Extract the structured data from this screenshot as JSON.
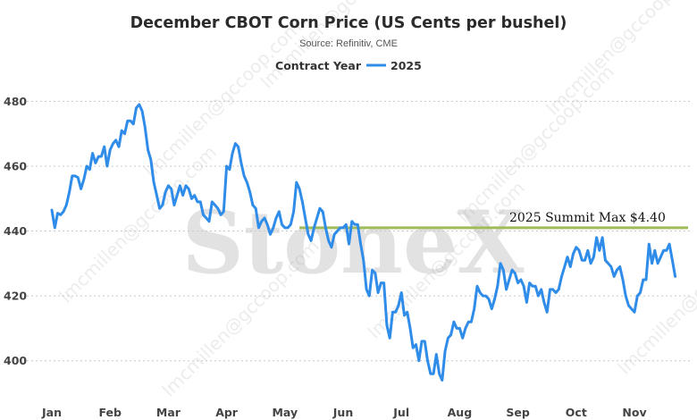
{
  "chart_data": {
    "type": "line",
    "title": "December CBOT Corn Price (US Cents per bushel)",
    "subtitle": "Source: Refinitiv, CME",
    "legend": {
      "title": "Contract Year",
      "placement": "top-center"
    },
    "xlabel": "",
    "ylabel": "",
    "x_ticks": [
      "Jan",
      "Feb",
      "Mar",
      "Apr",
      "May",
      "Jun",
      "Jul",
      "Aug",
      "Sep",
      "Oct",
      "Nov"
    ],
    "ylim": [
      390,
      487
    ],
    "y_ticks": [
      400,
      420,
      440,
      460,
      480
    ],
    "grid": "horizontal",
    "series": [
      {
        "name": "2025",
        "color": "#2f8ce8",
        "x": [
          0.0,
          0.05,
          0.1,
          0.15,
          0.2,
          0.25,
          0.3,
          0.35,
          0.4,
          0.45,
          0.5,
          0.55,
          0.6,
          0.65,
          0.7,
          0.75,
          0.8,
          0.85,
          0.9,
          0.95,
          1.0,
          1.05,
          1.1,
          1.15,
          1.2,
          1.25,
          1.3,
          1.35,
          1.4,
          1.45,
          1.5,
          1.55,
          1.6,
          1.65,
          1.7,
          1.75,
          1.8,
          1.85,
          1.9,
          1.95,
          2.0,
          2.05,
          2.1,
          2.15,
          2.2,
          2.25,
          2.3,
          2.35,
          2.4,
          2.45,
          2.5,
          2.55,
          2.6,
          2.65,
          2.7,
          2.75,
          2.8,
          2.85,
          2.9,
          2.95,
          3.0,
          3.05,
          3.1,
          3.15,
          3.2,
          3.25,
          3.3,
          3.35,
          3.4,
          3.45,
          3.5,
          3.55,
          3.6,
          3.65,
          3.7,
          3.75,
          3.8,
          3.85,
          3.9,
          3.95,
          4.0,
          4.05,
          4.1,
          4.15,
          4.2,
          4.25,
          4.3,
          4.35,
          4.4,
          4.45,
          4.5,
          4.55,
          4.6,
          4.65,
          4.7,
          4.75,
          4.8,
          4.85,
          4.9,
          4.95,
          5.0,
          5.05,
          5.1,
          5.15,
          5.2,
          5.25,
          5.3,
          5.35,
          5.4,
          5.45,
          5.5,
          5.55,
          5.6,
          5.65,
          5.7,
          5.75,
          5.8,
          5.85,
          5.9,
          5.95,
          6.0,
          6.05,
          6.1,
          6.15,
          6.2,
          6.25,
          6.3,
          6.35,
          6.4,
          6.45,
          6.5,
          6.55,
          6.6,
          6.65,
          6.7,
          6.75,
          6.8,
          6.85,
          6.9,
          6.95,
          7.0,
          7.05,
          7.1,
          7.15,
          7.2,
          7.25,
          7.3,
          7.35,
          7.4,
          7.45,
          7.5,
          7.55,
          7.6,
          7.65,
          7.7,
          7.75,
          7.8,
          7.85,
          7.9,
          7.95,
          8.0,
          8.05,
          8.1,
          8.15,
          8.2,
          8.25,
          8.3,
          8.35,
          8.4,
          8.45,
          8.5,
          8.55,
          8.6,
          8.65,
          8.7,
          8.75,
          8.8,
          8.85,
          8.9,
          8.95,
          9.0,
          9.05,
          9.1,
          9.15,
          9.2,
          9.25,
          9.3,
          9.35,
          9.4,
          9.45,
          9.5,
          9.55,
          9.6,
          9.65,
          9.7,
          9.75,
          9.8,
          9.85,
          9.9,
          9.95,
          10.0,
          10.05,
          10.1,
          10.15,
          10.2,
          10.25,
          10.3,
          10.35,
          10.4,
          10.45,
          10.5,
          10.55,
          10.6,
          10.65,
          10.7
        ],
        "values": [
          446.5,
          441,
          445.5,
          445,
          446,
          448,
          452,
          457,
          457,
          456.5,
          453,
          456,
          460,
          459,
          464,
          461,
          463,
          463,
          466,
          460,
          465,
          467,
          468,
          466,
          471,
          470,
          474,
          474,
          473,
          478,
          479,
          477,
          472,
          465,
          462,
          455,
          451,
          447,
          448,
          452,
          454,
          453,
          448,
          451,
          454,
          451,
          454,
          453,
          450,
          451,
          449,
          449,
          445,
          444,
          443,
          449,
          448,
          447,
          445,
          446,
          460,
          459,
          464,
          467,
          466,
          461,
          457,
          455,
          452,
          448,
          447,
          441,
          443,
          444,
          442,
          439,
          441,
          444,
          446,
          442,
          441,
          441,
          442,
          446,
          455,
          453,
          449,
          444,
          439,
          437,
          441,
          444,
          447,
          446,
          441,
          437,
          435,
          439,
          440,
          441,
          441,
          442,
          436,
          443,
          442,
          442,
          436,
          431,
          422,
          420,
          428,
          427,
          421,
          424,
          424,
          411,
          407,
          415,
          415,
          417,
          421,
          414,
          415,
          410,
          404,
          405,
          400,
          406,
          406,
          400,
          396,
          396,
          402,
          396,
          394,
          403,
          407,
          408,
          412,
          410,
          410,
          407,
          410,
          412,
          412,
          416,
          423,
          421,
          420,
          420,
          419,
          416,
          419,
          423,
          430,
          428,
          422,
          425,
          428,
          427,
          424,
          425,
          423,
          418,
          424,
          423,
          423,
          420,
          422,
          418,
          415,
          422,
          422,
          421,
          422,
          426,
          429,
          432,
          429,
          433,
          435,
          434,
          431,
          431,
          434,
          430,
          432,
          438,
          434,
          438,
          431,
          430,
          429,
          426,
          428,
          429,
          425,
          420,
          417,
          416,
          415,
          420,
          421,
          425,
          425,
          436,
          430,
          434,
          430,
          432,
          434,
          434,
          436,
          431,
          426
        ]
      }
    ],
    "annotations": [
      {
        "text": "2025 Summit Max $4.40",
        "y": 441,
        "x_start": 4.25,
        "x_end": 10.92,
        "color": "#9ebc5a"
      }
    ],
    "watermarks": {
      "brand": "StoneX",
      "repeat": [
        "lmcmillen@gccoop.com"
      ]
    }
  }
}
